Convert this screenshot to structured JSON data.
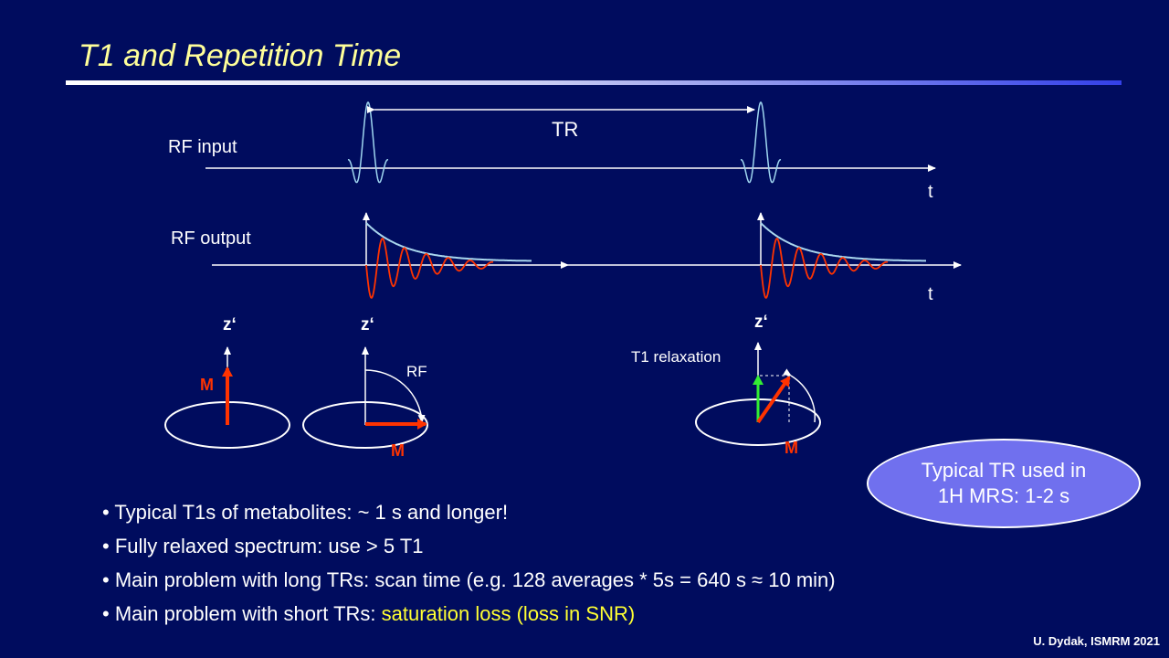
{
  "slide": {
    "title": "T1 and Repetition Time",
    "credit": "U. Dydak, ISMRM 2021"
  },
  "diagram": {
    "rf_input_label": "RF input",
    "rf_output_label": "RF output",
    "tr_label": "TR",
    "time_axis_label": "t",
    "z_axis_label": "z‘",
    "magnetization_label": "M",
    "rf_label": "RF",
    "t1_relaxation_label": "T1 relaxation",
    "colors": {
      "background": "#000c5e",
      "title": "#ffff99",
      "magnetization": "#ff3300",
      "fid_signal": "#ff3300",
      "rf_pulse": "#9fd6f0",
      "envelope": "#a9d7ee",
      "relaxed_component": "#33ee33",
      "highlight": "#ffff33"
    }
  },
  "callout": {
    "line1": "Typical TR used in",
    "line2": "1H MRS: 1-2 s"
  },
  "bullets": [
    {
      "text": "Typical T1s of metabolites: ~ 1 s and longer!"
    },
    {
      "text": "Fully relaxed spectrum: use > 5 T1"
    },
    {
      "text": "Main problem with long TRs: scan time  (e.g. 128 averages * 5s = 640 s ≈ 10 min)"
    },
    {
      "text": "Main problem with short TRs: ",
      "highlight": "saturation loss (loss in SNR)"
    }
  ]
}
